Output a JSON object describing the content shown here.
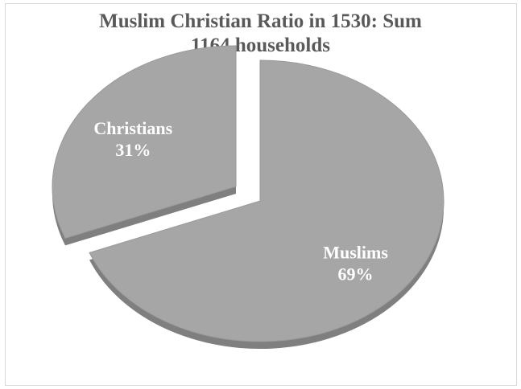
{
  "chart_data": {
    "type": "pie",
    "title_lines": [
      "Muslim Christian Ratio in 1530: Sum",
      "1164 households"
    ],
    "slices": [
      {
        "name": "Muslims",
        "value": 69,
        "label": "69%",
        "exploded": false
      },
      {
        "name": "Christians",
        "value": 31,
        "label": "31%",
        "exploded": true
      }
    ],
    "colors": {
      "slice_top": "#a6a6a6",
      "slice_side": "#7f7f7f",
      "label": "#ffffff",
      "title": "#595959"
    },
    "legend": "none"
  }
}
